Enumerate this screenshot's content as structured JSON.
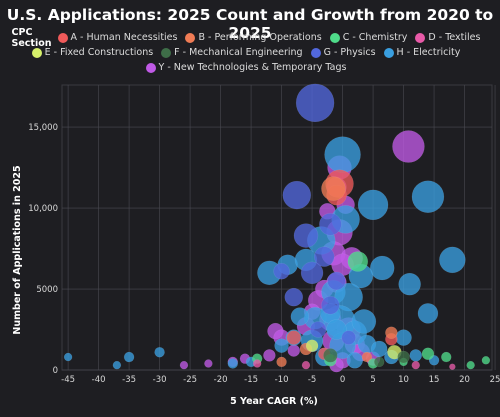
{
  "chart_data": {
    "type": "scatter",
    "title": "U.S. Applications: 2025 Count and Growth from 2020 to 2025",
    "xlabel": "5 Year CAGR (%)",
    "ylabel": "Number of Applications in 2025",
    "xlim": [
      -46,
      24.5
    ],
    "ylim": [
      0,
      17600
    ],
    "xticks": [
      -45,
      -40,
      -35,
      -30,
      -25,
      -20,
      -15,
      -10,
      -5,
      0,
      5,
      10,
      15,
      20,
      25
    ],
    "yticks": [
      0,
      5000,
      10000,
      15000
    ],
    "ytick_labels": [
      "0",
      "5000",
      "10,000",
      "15,000"
    ],
    "grid": true,
    "legend": {
      "title": "CPC Section",
      "placement": "top",
      "entries": [
        {
          "key": "A",
          "label": "A - Human Necessities",
          "color": "#ef5a5a"
        },
        {
          "key": "B",
          "label": "B - Performing Operations",
          "color": "#f07c55"
        },
        {
          "key": "C",
          "label": "C - Chemistry",
          "color": "#4fdc8a"
        },
        {
          "key": "D",
          "label": "D - Textiles",
          "color": "#e85aa8"
        },
        {
          "key": "E",
          "label": "E - Fixed Constructions",
          "color": "#d6f06a"
        },
        {
          "key": "F",
          "label": "F - Mechanical Engineering",
          "color": "#3e6e48"
        },
        {
          "key": "G",
          "label": "G - Physics",
          "color": "#5268dd"
        },
        {
          "key": "H",
          "label": "H - Electricity",
          "color": "#3a9fe0"
        },
        {
          "key": "Y",
          "label": "Y - New Technologies & Temporary Tags",
          "color": "#c05ae6"
        }
      ]
    },
    "series": [
      {
        "key": "G",
        "points": [
          [
            -4.5,
            16500,
            19
          ],
          [
            -7.5,
            10800,
            14
          ],
          [
            -6,
            8300,
            12
          ],
          [
            -2,
            9000,
            11
          ],
          [
            -3,
            7000,
            10
          ],
          [
            -5,
            6000,
            11
          ],
          [
            -8,
            4500,
            9
          ],
          [
            -2,
            4000,
            9
          ],
          [
            -4,
            2500,
            8
          ],
          [
            1,
            2000,
            7
          ],
          [
            -1,
            5500,
            9
          ],
          [
            -10,
            6100,
            8
          ]
        ]
      },
      {
        "key": "H",
        "points": [
          [
            0,
            13300,
            18
          ],
          [
            14,
            10700,
            16
          ],
          [
            5,
            10200,
            15
          ],
          [
            18,
            6800,
            13
          ],
          [
            -12,
            6000,
            12
          ],
          [
            -3.5,
            8000,
            14
          ],
          [
            0.5,
            9300,
            14
          ],
          [
            -9,
            6500,
            10
          ],
          [
            -6,
            6800,
            11
          ],
          [
            6.5,
            6300,
            12
          ],
          [
            3,
            5800,
            12
          ],
          [
            11,
            5300,
            11
          ],
          [
            14,
            3500,
            10
          ],
          [
            -1.5,
            4800,
            12
          ],
          [
            1,
            4500,
            14
          ],
          [
            -0.5,
            3000,
            16
          ],
          [
            2,
            2300,
            12
          ],
          [
            -4.5,
            3200,
            11
          ],
          [
            -7,
            3300,
            9
          ],
          [
            -2,
            3500,
            10
          ],
          [
            3.5,
            3000,
            12
          ],
          [
            -5,
            1800,
            11
          ],
          [
            0,
            1500,
            13
          ],
          [
            -1,
            2500,
            10
          ],
          [
            4,
            1600,
            9
          ],
          [
            -8,
            2000,
            8
          ],
          [
            -10,
            1500,
            7
          ],
          [
            6,
            1300,
            8
          ],
          [
            8,
            800,
            7
          ],
          [
            10,
            2000,
            8
          ],
          [
            12,
            900,
            6
          ],
          [
            15,
            600,
            5
          ],
          [
            -30,
            1100,
            5
          ],
          [
            -35,
            800,
            5
          ],
          [
            -45,
            800,
            4
          ],
          [
            -37,
            300,
            4
          ],
          [
            -15,
            500,
            5
          ],
          [
            -18,
            400,
            5
          ],
          [
            -3,
            800,
            9
          ],
          [
            2,
            600,
            8
          ]
        ]
      },
      {
        "key": "Y",
        "points": [
          [
            10.8,
            13800,
            16
          ],
          [
            -0.5,
            12500,
            12
          ],
          [
            -1,
            11300,
            10
          ],
          [
            0.5,
            10200,
            9
          ],
          [
            -2.5,
            9800,
            8
          ],
          [
            -0.5,
            8500,
            13
          ],
          [
            -1.5,
            7200,
            12
          ],
          [
            1.5,
            6900,
            11
          ],
          [
            0,
            6500,
            11
          ],
          [
            -1,
            5400,
            10
          ],
          [
            -3,
            5000,
            9
          ],
          [
            -4,
            4300,
            10
          ],
          [
            -5,
            3600,
            8
          ],
          [
            -2,
            3100,
            11
          ],
          [
            -6,
            2700,
            9
          ],
          [
            -11,
            2400,
            8
          ],
          [
            -10,
            2000,
            8
          ],
          [
            -8,
            1200,
            6
          ],
          [
            -12,
            900,
            6
          ],
          [
            -16,
            700,
            5
          ],
          [
            -18,
            500,
            5
          ],
          [
            -22,
            400,
            4
          ],
          [
            -26,
            300,
            4
          ],
          [
            1,
            2500,
            12
          ],
          [
            -1.5,
            1800,
            11
          ],
          [
            2,
            1600,
            10
          ],
          [
            3,
            1100,
            9
          ],
          [
            5,
            700,
            7
          ],
          [
            0,
            600,
            8
          ],
          [
            -1,
            300,
            7
          ]
        ]
      },
      {
        "key": "A",
        "points": [
          [
            -0.5,
            11500,
            14
          ],
          [
            -1,
            10800,
            10
          ],
          [
            -8,
            2000,
            7
          ],
          [
            8,
            1900,
            6
          ],
          [
            -3,
            1000,
            6
          ]
        ]
      },
      {
        "key": "B",
        "points": [
          [
            -1.5,
            11200,
            12
          ],
          [
            8,
            2300,
            6
          ],
          [
            -6,
            1300,
            6
          ],
          [
            4,
            800,
            5
          ],
          [
            -10,
            500,
            5
          ]
        ]
      },
      {
        "key": "C",
        "points": [
          [
            2.5,
            6700,
            10
          ],
          [
            14,
            1000,
            6
          ],
          [
            17,
            800,
            5
          ],
          [
            23.5,
            600,
            4
          ],
          [
            21,
            300,
            4
          ],
          [
            -2,
            600,
            6
          ],
          [
            5,
            400,
            5
          ],
          [
            -14,
            700,
            5
          ],
          [
            10,
            500,
            4
          ]
        ]
      },
      {
        "key": "D",
        "points": [
          [
            -14,
            400,
            4
          ],
          [
            12,
            300,
            4
          ],
          [
            -6,
            300,
            4
          ],
          [
            18,
            200,
            3
          ]
        ]
      },
      {
        "key": "E",
        "points": [
          [
            8.5,
            1100,
            7
          ],
          [
            -5,
            1500,
            6
          ]
        ]
      },
      {
        "key": "F",
        "points": [
          [
            10,
            800,
            6
          ],
          [
            -2,
            900,
            7
          ],
          [
            6,
            500,
            5
          ]
        ]
      }
    ]
  }
}
